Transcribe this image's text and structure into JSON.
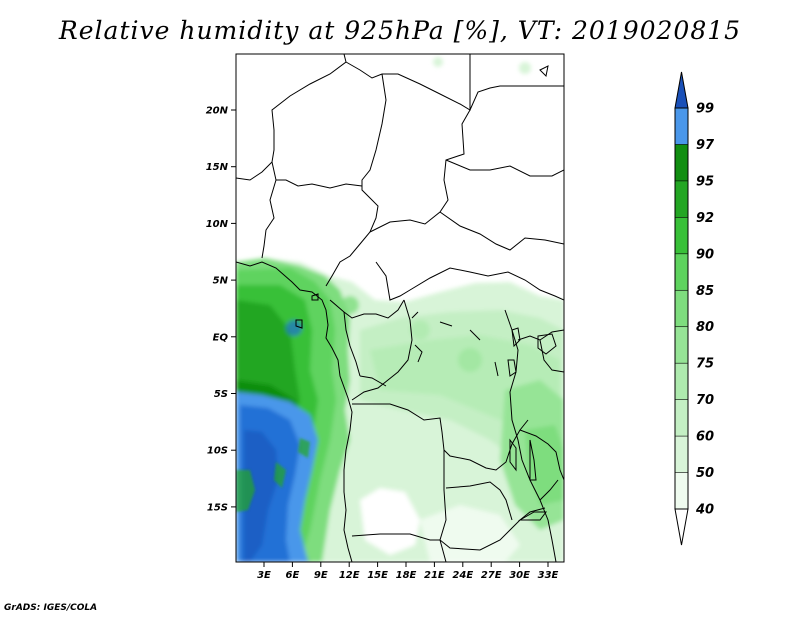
{
  "title": "Relative humidity at 925hPa [%], VT: 2019020815",
  "footer": "GrADS: IGES/COLA",
  "map": {
    "lat_ticks": [
      "20N",
      "15N",
      "10N",
      "5N",
      "EQ",
      "5S",
      "10S",
      "15S"
    ],
    "lon_ticks": [
      "3E",
      "6E",
      "9E",
      "12E",
      "15E",
      "18E",
      "21E",
      "24E",
      "27E",
      "30E",
      "33E"
    ]
  },
  "colorbar": {
    "levels": [
      "40",
      "50",
      "60",
      "70",
      "75",
      "80",
      "85",
      "90",
      "92",
      "95",
      "97",
      "99"
    ],
    "colors": [
      "#effbef",
      "#d8f4d8",
      "#c4efc4",
      "#aeeaae",
      "#96e496",
      "#7edd7e",
      "#5ed35e",
      "#38c038",
      "#23a623",
      "#118e11",
      "#4a97ea",
      "#2071d6",
      "#1a50b8"
    ]
  }
}
